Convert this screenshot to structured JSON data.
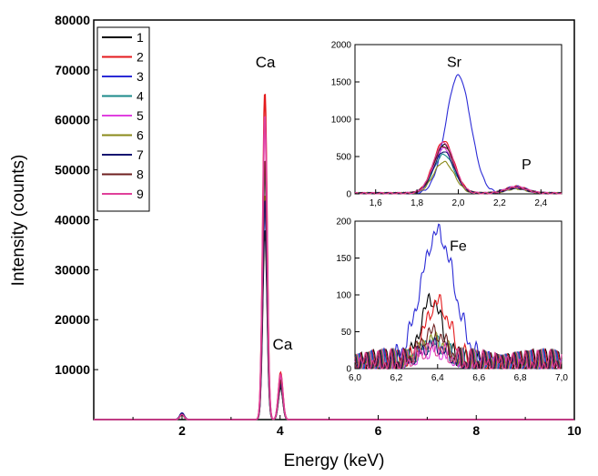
{
  "chart_data": [
    {
      "id": "main",
      "type": "line",
      "xlabel": "Energy (keV)",
      "ylabel": "Intensity (counts)",
      "xlim": [
        0.2,
        10
      ],
      "ylim": [
        0,
        80000
      ],
      "xticks": [
        2,
        4,
        6,
        8,
        10
      ],
      "yticks": [
        10000,
        20000,
        30000,
        40000,
        50000,
        60000,
        70000,
        80000
      ],
      "grid": false,
      "legend_position": "top-left",
      "peak_labels": [
        {
          "text": "Ca",
          "x": 3.7,
          "y": 70500
        },
        {
          "text": "Ca",
          "x": 4.05,
          "y": 14000
        }
      ],
      "series": [
        {
          "name": "1",
          "color": "#000000",
          "peaks": [
            [
              2.0,
              1300
            ],
            [
              3.69,
              38000
            ],
            [
              4.01,
              6500
            ]
          ]
        },
        {
          "name": "2",
          "color": "#e41a1c",
          "peaks": [
            [
              2.0,
              1100
            ],
            [
              3.69,
              65500
            ],
            [
              4.01,
              9400
            ]
          ]
        },
        {
          "name": "3",
          "color": "#2b2bd6",
          "peaks": [
            [
              2.0,
              1300
            ],
            [
              3.69,
              43000
            ],
            [
              4.01,
              7000
            ]
          ]
        },
        {
          "name": "4",
          "color": "#1b8a8a",
          "peaks": [
            [
              2.0,
              900
            ],
            [
              3.69,
              50000
            ],
            [
              4.01,
              7500
            ]
          ]
        },
        {
          "name": "5",
          "color": "#e040e0",
          "peaks": [
            [
              2.0,
              1000
            ],
            [
              3.69,
              60000
            ],
            [
              4.01,
              8800
            ]
          ]
        },
        {
          "name": "6",
          "color": "#8a8a1a",
          "peaks": [
            [
              2.0,
              900
            ],
            [
              3.69,
              45000
            ],
            [
              4.01,
              7000
            ]
          ]
        },
        {
          "name": "7",
          "color": "#141470",
          "peaks": [
            [
              2.0,
              1200
            ],
            [
              3.69,
              44000
            ],
            [
              4.01,
              7000
            ]
          ]
        },
        {
          "name": "8",
          "color": "#6e1f1f",
          "peaks": [
            [
              2.0,
              1000
            ],
            [
              3.69,
              52000
            ],
            [
              4.01,
              7800
            ]
          ]
        },
        {
          "name": "9",
          "color": "#e0409a",
          "peaks": [
            [
              2.0,
              1000
            ],
            [
              3.69,
              61000
            ],
            [
              4.01,
              9000
            ]
          ]
        }
      ]
    },
    {
      "id": "inset-sr",
      "type": "line",
      "xlim": [
        1.5,
        2.5
      ],
      "ylim": [
        0,
        2000
      ],
      "xticks": [
        1.6,
        1.8,
        2.0,
        2.2,
        2.4
      ],
      "xticklabels": [
        "1,6",
        "1,8",
        "2,0",
        "2,2",
        "2,4"
      ],
      "yticks": [
        0,
        500,
        1000,
        1500,
        2000
      ],
      "peak_labels": [
        {
          "text": "Sr",
          "x": 1.98,
          "y": 1700
        },
        {
          "text": "P",
          "x": 2.33,
          "y": 330
        }
      ],
      "series": [
        {
          "name": "1",
          "color": "#000000",
          "peaks": [
            [
              1.93,
              650,
              0.05
            ],
            [
              2.28,
              80,
              0.05
            ]
          ]
        },
        {
          "name": "2",
          "color": "#e41a1c",
          "peaks": [
            [
              1.93,
              700,
              0.05
            ],
            [
              2.28,
              90,
              0.05
            ]
          ]
        },
        {
          "name": "3",
          "color": "#2b2bd6",
          "peaks": [
            [
              2.0,
              1580,
              0.06
            ],
            [
              2.28,
              90,
              0.05
            ]
          ]
        },
        {
          "name": "4",
          "color": "#1b8a8a",
          "peaks": [
            [
              1.93,
              520,
              0.05
            ],
            [
              2.28,
              70,
              0.05
            ]
          ]
        },
        {
          "name": "5",
          "color": "#e040e0",
          "peaks": [
            [
              1.93,
              600,
              0.05
            ],
            [
              2.28,
              80,
              0.05
            ]
          ]
        },
        {
          "name": "6",
          "color": "#8a8a1a",
          "peaks": [
            [
              1.93,
              420,
              0.05
            ],
            [
              2.28,
              60,
              0.05
            ]
          ]
        },
        {
          "name": "7",
          "color": "#141470",
          "peaks": [
            [
              1.93,
              560,
              0.05
            ],
            [
              2.28,
              70,
              0.05
            ]
          ]
        },
        {
          "name": "8",
          "color": "#6e1f1f",
          "peaks": [
            [
              1.93,
              630,
              0.05
            ],
            [
              2.28,
              80,
              0.05
            ]
          ]
        },
        {
          "name": "9",
          "color": "#e0409a",
          "peaks": [
            [
              1.93,
              680,
              0.05
            ],
            [
              2.28,
              85,
              0.05
            ]
          ]
        }
      ]
    },
    {
      "id": "inset-fe",
      "type": "line",
      "xlim": [
        6.0,
        7.0
      ],
      "ylim": [
        0,
        200
      ],
      "xticks": [
        6.0,
        6.2,
        6.4,
        6.6,
        6.8,
        7.0
      ],
      "xticklabels": [
        "6,0",
        "6,2",
        "6,4",
        "6,6",
        "6,8",
        "7,0"
      ],
      "yticks": [
        0,
        50,
        100,
        150,
        200
      ],
      "peak_labels": [
        {
          "text": "Fe",
          "x": 6.5,
          "y": 160
        }
      ],
      "series": [
        {
          "name": "1",
          "color": "#000000",
          "peaks": [
            [
              6.37,
              85,
              0.05
            ]
          ]
        },
        {
          "name": "2",
          "color": "#e41a1c",
          "peaks": [
            [
              6.4,
              80,
              0.06
            ]
          ]
        },
        {
          "name": "3",
          "color": "#2b2bd6",
          "peaks": [
            [
              6.4,
              175,
              0.08
            ]
          ]
        },
        {
          "name": "4",
          "color": "#1b8a8a",
          "peaks": [
            [
              6.38,
              25,
              0.06
            ]
          ]
        },
        {
          "name": "5",
          "color": "#e040e0",
          "peaks": [
            [
              6.38,
              15,
              0.06
            ]
          ]
        },
        {
          "name": "6",
          "color": "#8a8a1a",
          "peaks": [
            [
              6.38,
              30,
              0.06
            ]
          ]
        },
        {
          "name": "7",
          "color": "#141470",
          "peaks": [
            [
              6.38,
              22,
              0.06
            ]
          ]
        },
        {
          "name": "8",
          "color": "#6e1f1f",
          "peaks": [
            [
              6.38,
              40,
              0.06
            ]
          ]
        },
        {
          "name": "9",
          "color": "#e0409a",
          "peaks": [
            [
              6.38,
              18,
              0.06
            ]
          ]
        }
      ]
    }
  ]
}
